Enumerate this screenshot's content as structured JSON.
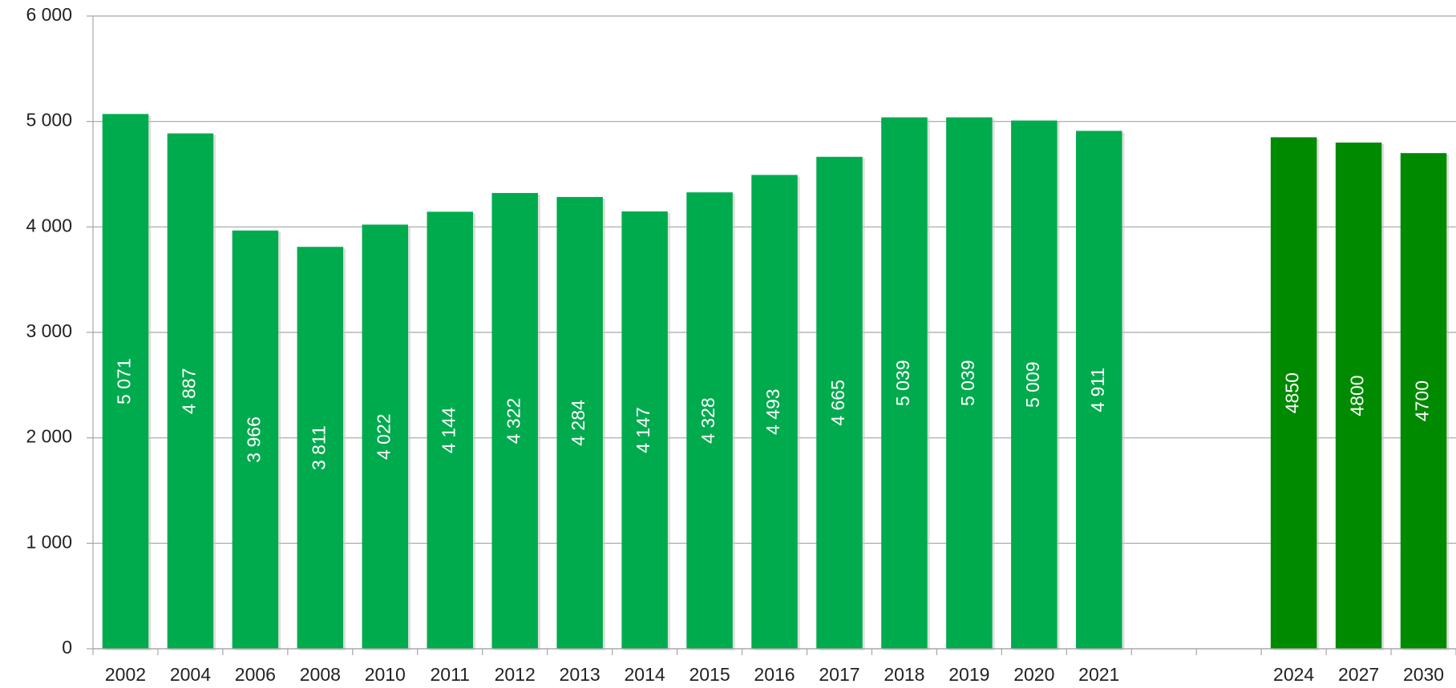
{
  "chart_data": {
    "type": "bar",
    "categories": [
      "2002",
      "2004",
      "2006",
      "2008",
      "2010",
      "2011",
      "2012",
      "2013",
      "2014",
      "2015",
      "2016",
      "2017",
      "2018",
      "2019",
      "2020",
      "2021",
      null,
      null,
      "2024",
      "2027",
      "2030"
    ],
    "values": [
      5071,
      4887,
      3966,
      3811,
      4022,
      4144,
      4322,
      4284,
      4147,
      4328,
      4493,
      4665,
      5039,
      5039,
      5009,
      4911,
      null,
      null,
      4850,
      4800,
      4700
    ],
    "value_labels": [
      "5 071",
      "4 887",
      "3 966",
      "3 811",
      "4 022",
      "4 144",
      "4 322",
      "4 284",
      "4 147",
      "4 328",
      "4 493",
      "4 665",
      "5 039",
      "5 039",
      "5 009",
      "4 911",
      null,
      null,
      "4850",
      "4800",
      "4700"
    ],
    "colors": [
      "#00ab4e",
      "#00ab4e",
      "#00ab4e",
      "#00ab4e",
      "#00ab4e",
      "#00ab4e",
      "#00ab4e",
      "#00ab4e",
      "#00ab4e",
      "#00ab4e",
      "#00ab4e",
      "#00ab4e",
      "#00ab4e",
      "#00ab4e",
      "#00ab4e",
      "#00ab4e",
      null,
      null,
      "#008a00",
      "#008a00",
      "#008a00"
    ],
    "ylim": [
      0,
      6000
    ],
    "yticks": [
      0,
      {
        "value": 1000,
        "label": "1 000"
      },
      {
        "value": 2000,
        "label": "2 000"
      },
      {
        "value": 3000,
        "label": "3 000"
      },
      {
        "value": 4000,
        "label": "4 000"
      },
      {
        "value": 5000,
        "label": "5 000"
      },
      {
        "value": 6000,
        "label": "6 000"
      }
    ],
    "grid": true
  }
}
